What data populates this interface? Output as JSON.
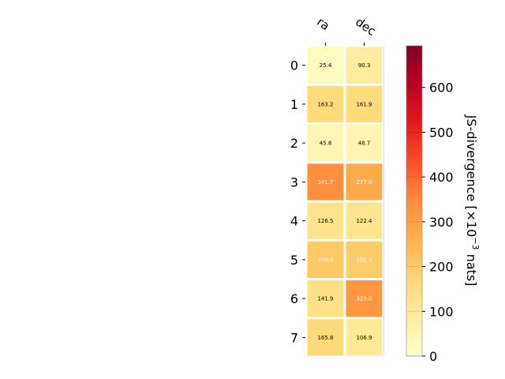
{
  "chart_data": {
    "type": "heatmap",
    "columns": [
      "ra",
      "dec"
    ],
    "rows": [
      "0",
      "1",
      "2",
      "3",
      "4",
      "5",
      "6",
      "7"
    ],
    "values": [
      [
        25.4,
        90.3
      ],
      [
        163.2,
        161.9
      ],
      [
        45.8,
        48.7
      ],
      [
        341.7,
        277.0
      ],
      [
        126.5,
        122.4
      ],
      [
        209.4,
        201.4
      ],
      [
        141.9,
        323.0
      ],
      [
        165.8,
        106.9
      ]
    ],
    "value_labels": [
      [
        "25.4",
        "90.3"
      ],
      [
        "163.2",
        "161.9"
      ],
      [
        "45.8",
        "48.7"
      ],
      [
        "341.7",
        "277.0"
      ],
      [
        "126.5",
        "122.4"
      ],
      [
        "209.4",
        "201.4"
      ],
      [
        "141.9",
        "323.0"
      ],
      [
        "165.8",
        "106.9"
      ]
    ],
    "colorbar": {
      "label_prefix": "JS-divergence [×10",
      "label_exponent": "−3",
      "label_suffix": " nats]",
      "range": [
        0,
        693
      ],
      "ticks": [
        0,
        100,
        200,
        300,
        400,
        500,
        600
      ],
      "colormap": "YlOrRd"
    }
  }
}
